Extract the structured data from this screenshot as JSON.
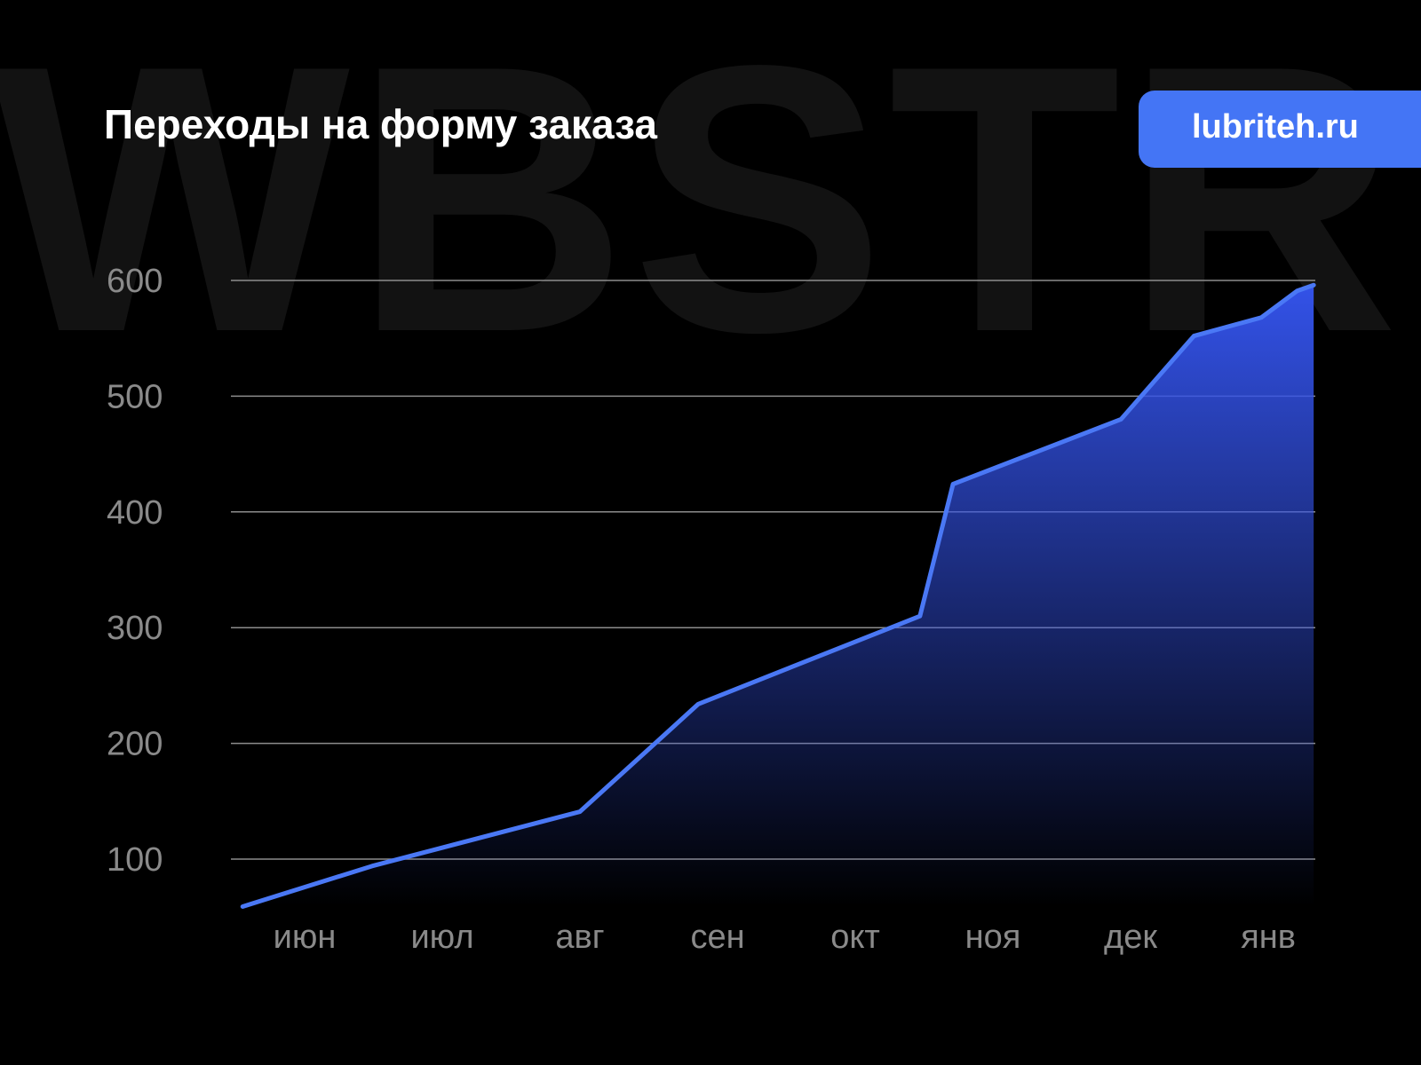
{
  "watermark": "WBSTR",
  "title": "Переходы на форму заказа",
  "badge": "lubriteh.ru",
  "colors": {
    "line": "#4a78f5",
    "fill_top": "#3352e8",
    "badge": "#4475f5",
    "grid": "#8c8c8c",
    "background": "#000000"
  },
  "chart_data": {
    "type": "area",
    "title": "Переходы на форму заказа",
    "categories": [
      "июн",
      "июл",
      "авг",
      "сен",
      "окт",
      "ноя",
      "дек",
      "янв"
    ],
    "yticks": [
      100,
      200,
      300,
      400,
      500,
      600
    ],
    "ylim": [
      60,
      600
    ],
    "grid": true,
    "points": [
      {
        "x": -0.45,
        "y": 59
      },
      {
        "x": 0.49,
        "y": 94
      },
      {
        "x": 2.0,
        "y": 141
      },
      {
        "x": 2.86,
        "y": 234
      },
      {
        "x": 4.47,
        "y": 310
      },
      {
        "x": 4.71,
        "y": 424
      },
      {
        "x": 5.93,
        "y": 480
      },
      {
        "x": 6.46,
        "y": 552
      },
      {
        "x": 6.95,
        "y": 568
      },
      {
        "x": 7.21,
        "y": 591
      },
      {
        "x": 7.33,
        "y": 596
      }
    ]
  }
}
